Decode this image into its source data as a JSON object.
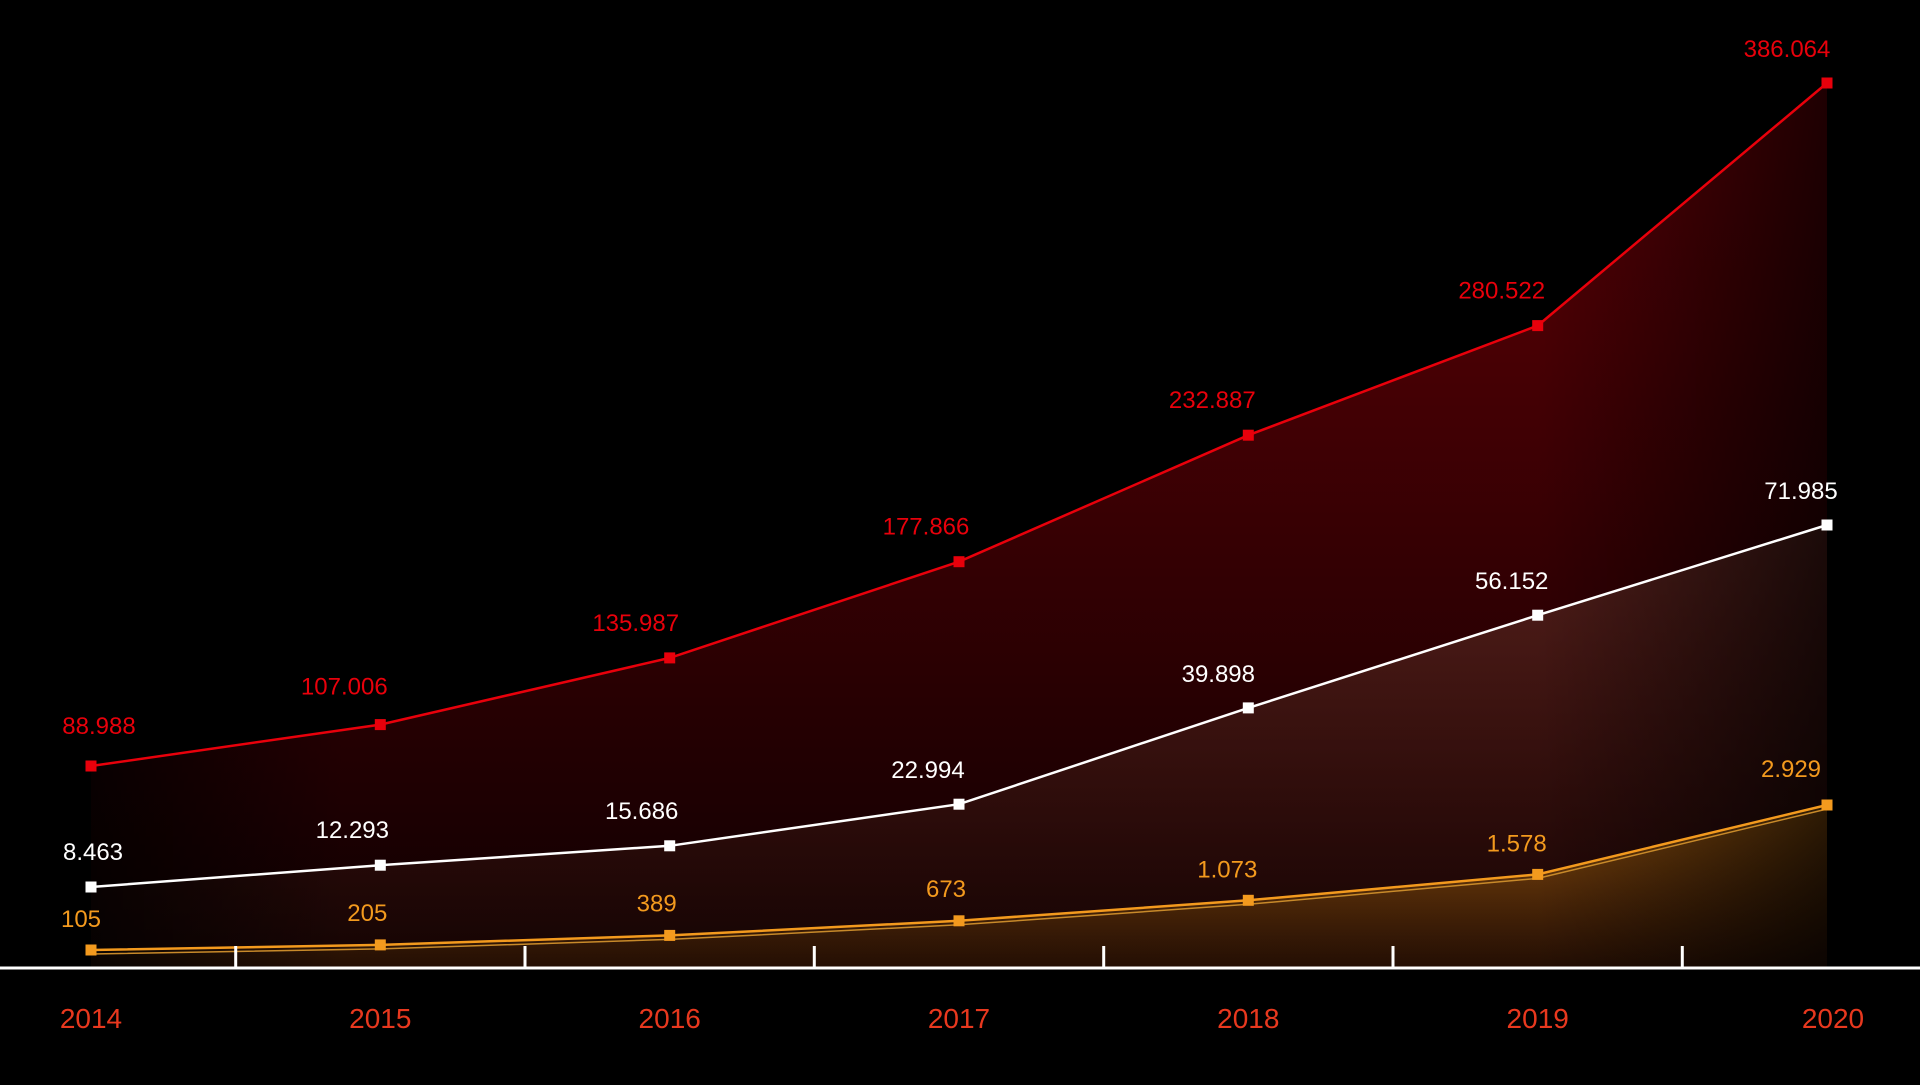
{
  "chart_data": {
    "type": "line",
    "categories": [
      "2014",
      "2015",
      "2016",
      "2017",
      "2018",
      "2019",
      "2020"
    ],
    "series": [
      {
        "key": "red",
        "labels": [
          "88.988",
          "107.006",
          "135.987",
          "177.866",
          "232.887",
          "280.522",
          "386.064"
        ],
        "values": [
          88.988,
          107.006,
          135.987,
          177.866,
          232.887,
          280.522,
          386.064
        ],
        "color": "#e8000b"
      },
      {
        "key": "white",
        "labels": [
          "8.463",
          "12.293",
          "15.686",
          "22.994",
          "39.898",
          "56.152",
          "71.985"
        ],
        "values": [
          8.463,
          12.293,
          15.686,
          22.994,
          39.898,
          56.152,
          71.985
        ],
        "color": "#ffffff"
      },
      {
        "key": "orange",
        "labels": [
          "105",
          "205",
          "389",
          "673",
          "1.073",
          "1.578",
          "2.929"
        ],
        "values": [
          105,
          205,
          389,
          673,
          1073,
          1578,
          2929
        ],
        "color": "#f39a1e"
      }
    ],
    "title": "",
    "xlabel": "",
    "ylabel": "",
    "y_axis_visible": false,
    "grid": false,
    "legend": "none",
    "colors": {
      "background": "#000000",
      "axis": "#ffffff",
      "tick_label": "#e8381e"
    }
  }
}
